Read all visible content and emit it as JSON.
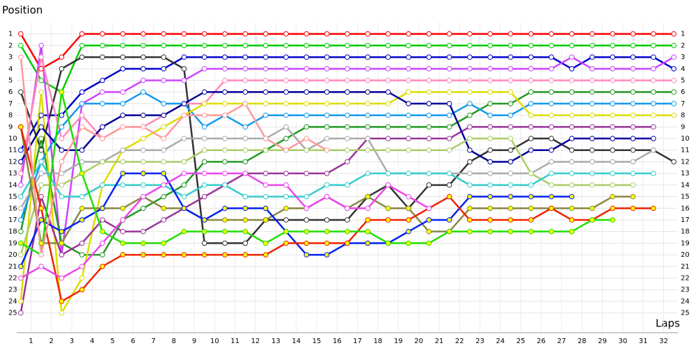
{
  "chart_data": {
    "type": "line",
    "y_title": "Position",
    "x_title": "Laps",
    "x": [
      0,
      1,
      2,
      3,
      4,
      5,
      6,
      7,
      8,
      9,
      10,
      11,
      12,
      13,
      14,
      15,
      16,
      17,
      18,
      19,
      20,
      21,
      22,
      23,
      24,
      25,
      26,
      27,
      28,
      29,
      30,
      31,
      32
    ],
    "xlim": [
      -0.2,
      32.2
    ],
    "xticks": [
      {
        "value": 0.5,
        "label": "1"
      },
      {
        "value": 1.5,
        "label": "2"
      },
      {
        "value": 2.5,
        "label": "3"
      },
      {
        "value": 3.5,
        "label": "4"
      },
      {
        "value": 4.5,
        "label": "5"
      },
      {
        "value": 5.5,
        "label": "6"
      },
      {
        "value": 6.5,
        "label": "7"
      },
      {
        "value": 7.5,
        "label": "8"
      },
      {
        "value": 8.5,
        "label": "9"
      },
      {
        "value": 9.5,
        "label": "10"
      },
      {
        "value": 10.5,
        "label": "11"
      },
      {
        "value": 11.5,
        "label": "12"
      },
      {
        "value": 12.5,
        "label": "13"
      },
      {
        "value": 13.5,
        "label": "14"
      },
      {
        "value": 14.5,
        "label": "15"
      },
      {
        "value": 15.5,
        "label": "16"
      },
      {
        "value": 16.5,
        "label": "17"
      },
      {
        "value": 17.5,
        "label": "18"
      },
      {
        "value": 18.5,
        "label": "19"
      },
      {
        "value": 19.5,
        "label": "20"
      },
      {
        "value": 20.5,
        "label": "21"
      },
      {
        "value": 21.5,
        "label": "22"
      },
      {
        "value": 22.5,
        "label": "23"
      },
      {
        "value": 23.5,
        "label": "24"
      },
      {
        "value": 24.5,
        "label": "25"
      },
      {
        "value": 25.5,
        "label": "26"
      },
      {
        "value": 26.5,
        "label": "27"
      },
      {
        "value": 27.5,
        "label": "28"
      },
      {
        "value": 28.5,
        "label": "29"
      },
      {
        "value": 29.5,
        "label": "30"
      },
      {
        "value": 30.5,
        "label": "31"
      },
      {
        "value": 31.5,
        "label": "32"
      }
    ],
    "ylim": [
      26.7,
      0
    ],
    "yticks": [
      1,
      2,
      3,
      4,
      5,
      6,
      7,
      8,
      9,
      10,
      11,
      12,
      13,
      14,
      15,
      16,
      17,
      18,
      19,
      20,
      21,
      22,
      23,
      24,
      25
    ],
    "grid": true,
    "series": [
      {
        "color": "#ff0000",
        "marker_fill": "#ffffff",
        "values": [
          1,
          4,
          3,
          1,
          1,
          1,
          1,
          1,
          1,
          1,
          1,
          1,
          1,
          1,
          1,
          1,
          1,
          1,
          1,
          1,
          1,
          1,
          1,
          1,
          1,
          1,
          1,
          1,
          1,
          1,
          1,
          1,
          1
        ]
      },
      {
        "color": "#00cc00",
        "marker_fill": "#ffffff",
        "values": [
          2,
          5,
          6,
          2,
          2,
          2,
          2,
          2,
          2,
          2,
          2,
          2,
          2,
          2,
          2,
          2,
          2,
          2,
          2,
          2,
          2,
          2,
          2,
          2,
          2,
          2,
          2,
          2,
          2,
          2,
          2,
          2,
          2
        ]
      },
      {
        "color": "#0000cc",
        "marker_fill": "#ffffff",
        "values": [
          11,
          8,
          8,
          6,
          5,
          4,
          4,
          4,
          3,
          3,
          3,
          3,
          3,
          3,
          3,
          3,
          3,
          3,
          3,
          3,
          3,
          3,
          3,
          3,
          3,
          3,
          3,
          4,
          3,
          3,
          3,
          3,
          4
        ]
      },
      {
        "color": "#333333",
        "marker_fill": "#ffffff",
        "values": [
          6,
          11,
          4,
          3,
          3,
          3,
          3,
          3,
          4,
          19,
          19,
          19,
          17,
          17,
          17,
          17,
          17,
          15,
          14,
          16,
          14,
          14,
          12,
          11,
          11,
          10,
          10,
          11,
          11,
          11,
          11,
          11,
          12
        ]
      },
      {
        "color": "#cc44ff",
        "marker_fill": "#ffffff",
        "values": [
          14,
          2,
          20,
          7,
          6,
          6,
          5,
          5,
          5,
          4,
          4,
          4,
          4,
          4,
          4,
          4,
          4,
          4,
          4,
          4,
          4,
          4,
          4,
          4,
          4,
          4,
          4,
          3,
          4,
          4,
          4,
          4,
          3
        ]
      },
      {
        "color": "#ff88bb",
        "marker_fill": "#ffffff",
        "values": [
          13,
          3,
          10,
          8,
          10,
          9,
          9,
          8,
          7,
          7,
          5,
          5,
          5,
          5,
          5,
          5,
          5,
          5,
          5,
          5,
          5,
          5,
          5,
          5,
          5,
          5,
          5,
          5,
          5,
          5,
          5,
          5,
          5
        ]
      },
      {
        "color": "#229922",
        "marker_fill": "#ffffff",
        "values": [
          18,
          10,
          19,
          20,
          20,
          17,
          16,
          15,
          14,
          12,
          12,
          12,
          11,
          10,
          9,
          9,
          9,
          9,
          9,
          9,
          9,
          9,
          8,
          7,
          7,
          6,
          6,
          6,
          6,
          6,
          6,
          6,
          6
        ]
      },
      {
        "color": "#1199ee",
        "marker_fill": "#ffffff",
        "values": [
          17,
          12,
          9,
          7,
          7,
          7,
          6,
          7,
          7,
          9,
          8,
          9,
          8,
          8,
          8,
          8,
          8,
          8,
          8,
          8,
          8,
          8,
          7,
          8,
          8,
          7,
          7,
          7,
          7,
          7,
          7,
          7,
          7
        ]
      },
      {
        "color": "#dddd00",
        "marker_fill": "#ffffff",
        "values": [
          24,
          6,
          25,
          22,
          14,
          11,
          10,
          9,
          8,
          7,
          7,
          7,
          7,
          7,
          7,
          7,
          7,
          7,
          7,
          6,
          6,
          6,
          6,
          6,
          6,
          8,
          8,
          8,
          8,
          8,
          8,
          8,
          8
        ]
      },
      {
        "color": "#993399",
        "marker_fill": "#ffffff",
        "values": [
          25,
          15,
          20,
          19,
          17,
          18,
          18,
          17,
          16,
          15,
          14,
          13,
          13,
          13,
          13,
          13,
          12,
          10,
          10,
          10,
          10,
          10,
          9,
          9,
          9,
          9,
          9,
          9,
          9,
          9,
          9,
          9,
          null
        ]
      },
      {
        "color": "#000099",
        "marker_fill": "#ffffff",
        "values": [
          12,
          9,
          11,
          11,
          9,
          8,
          8,
          8,
          7,
          6,
          6,
          6,
          6,
          6,
          6,
          6,
          6,
          6,
          6,
          7,
          7,
          7,
          11,
          12,
          12,
          11,
          11,
          10,
          10,
          10,
          10,
          10,
          null
        ]
      },
      {
        "color": "#aaaaaa",
        "marker_fill": "#ffffff",
        "values": [
          16,
          13,
          13,
          12,
          12,
          11,
          11,
          11,
          10,
          10,
          10,
          10,
          10,
          9,
          11,
          10,
          10,
          10,
          13,
          13,
          13,
          13,
          13,
          13,
          13,
          13,
          12,
          12,
          12,
          12,
          12,
          11,
          null
        ]
      },
      {
        "color": "#aacc66",
        "marker_fill": "#ffffff",
        "values": [
          20,
          14,
          14,
          13,
          12,
          12,
          12,
          12,
          12,
          11,
          11,
          11,
          11,
          11,
          11,
          11,
          11,
          11,
          11,
          11,
          11,
          11,
          10,
          10,
          10,
          13,
          14,
          14,
          14,
          14,
          14,
          null,
          null
        ]
      },
      {
        "color": "#33cccc",
        "marker_fill": "#ffffff",
        "values": [
          15,
          12,
          15,
          15,
          14,
          14,
          14,
          14,
          15,
          14,
          14,
          15,
          15,
          15,
          15,
          14,
          14,
          13,
          13,
          13,
          13,
          13,
          14,
          14,
          14,
          14,
          13,
          13,
          13,
          13,
          13,
          13,
          null
        ]
      },
      {
        "color": "#888844",
        "marker_fill": "#ffff00",
        "values": [
          9,
          19,
          19,
          16,
          16,
          16,
          15,
          16,
          16,
          17,
          17,
          17,
          17,
          16,
          16,
          15,
          16,
          15,
          16,
          16,
          18,
          18,
          16,
          16,
          16,
          16,
          16,
          16,
          16,
          15,
          15,
          null,
          null
        ]
      },
      {
        "color": "#0022ee",
        "marker_fill": "#ffff00",
        "values": [
          21,
          17,
          18,
          17,
          16,
          13,
          13,
          13,
          16,
          17,
          16,
          16,
          16,
          18,
          20,
          20,
          19,
          19,
          19,
          18,
          17,
          17,
          15,
          15,
          15,
          15,
          15,
          15,
          null,
          null,
          null,
          null,
          null
        ]
      },
      {
        "color": "#ee2200",
        "marker_fill": "#ffff00",
        "values": [
          9,
          16,
          24,
          23,
          21,
          20,
          20,
          20,
          20,
          20,
          20,
          20,
          20,
          19,
          19,
          19,
          19,
          17,
          17,
          17,
          16,
          15,
          17,
          17,
          17,
          17,
          16,
          17,
          17,
          16,
          16,
          16,
          null
        ]
      },
      {
        "color": "#22dd00",
        "marker_fill": "#ffff00",
        "values": [
          19,
          20,
          6,
          13,
          18,
          19,
          19,
          19,
          18,
          18,
          18,
          18,
          19,
          18,
          18,
          18,
          18,
          18,
          19,
          19,
          19,
          18,
          18,
          18,
          18,
          18,
          18,
          18,
          17,
          17,
          null,
          null,
          null
        ]
      },
      {
        "color": "#ee44ee",
        "marker_fill": "#ffffff",
        "values": [
          22,
          21,
          22,
          21,
          19,
          17,
          15,
          14,
          13,
          13,
          13,
          13,
          14,
          14,
          16,
          15,
          16,
          16,
          14,
          15,
          16,
          null,
          null,
          null,
          null,
          null,
          null,
          null,
          null,
          null,
          null,
          null,
          null
        ]
      },
      {
        "color": "#ff9999",
        "marker_fill": "#ffffff",
        "values": [
          3,
          20,
          12,
          9,
          10,
          9,
          9,
          10,
          8,
          8,
          8,
          7,
          10,
          11,
          10,
          11,
          null,
          null,
          null,
          null,
          null,
          null,
          null,
          null,
          null,
          null,
          null,
          null,
          null,
          null,
          null,
          null,
          null
        ]
      }
    ]
  }
}
